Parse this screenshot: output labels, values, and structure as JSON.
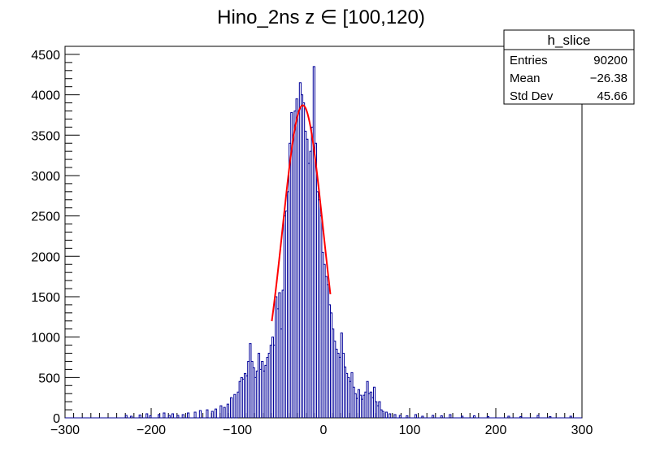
{
  "chart_data": {
    "type": "histogram",
    "title": "Hino_2ns z  ∈ [100,120)",
    "xlabel": "",
    "ylabel": "",
    "xlim": [
      -300,
      300
    ],
    "ylim": [
      0,
      4600
    ],
    "x_ticks": [
      -300,
      -200,
      -100,
      0,
      100,
      200,
      300
    ],
    "x_tick_labels": [
      "−300",
      "−200",
      "−100",
      "0",
      "100",
      "200",
      "300"
    ],
    "y_ticks": [
      0,
      500,
      1000,
      1500,
      2000,
      2500,
      3000,
      3500,
      4000,
      4500
    ],
    "y_tick_labels": [
      "0",
      "500",
      "1000",
      "1500",
      "2000",
      "2500",
      "3000",
      "3500",
      "4000",
      "4500"
    ],
    "bin_width": 2,
    "histogram_color": "#000099",
    "fit_color": "#ff0000",
    "series": [
      {
        "points": [
          [
            -230,
            30
          ],
          [
            -224,
            20
          ],
          [
            -214,
            35
          ],
          [
            -206,
            50
          ],
          [
            -202,
            25
          ],
          [
            -192,
            40
          ],
          [
            -186,
            60
          ],
          [
            -180,
            30
          ],
          [
            -176,
            50
          ],
          [
            -170,
            30
          ],
          [
            -164,
            40
          ],
          [
            -158,
            60
          ],
          [
            -150,
            70
          ],
          [
            -144,
            90
          ],
          [
            -136,
            100
          ],
          [
            -130,
            80
          ],
          [
            -126,
            110
          ],
          [
            -120,
            150
          ],
          [
            -116,
            130
          ],
          [
            -112,
            170
          ],
          [
            -108,
            250
          ],
          [
            -104,
            290
          ],
          [
            -100,
            320
          ],
          [
            -98,
            450
          ],
          [
            -96,
            500
          ],
          [
            -94,
            480
          ],
          [
            -92,
            550
          ],
          [
            -90,
            520
          ],
          [
            -88,
            700
          ],
          [
            -86,
            920
          ],
          [
            -84,
            700
          ],
          [
            -82,
            620
          ],
          [
            -80,
            500
          ],
          [
            -78,
            580
          ],
          [
            -76,
            800
          ],
          [
            -74,
            600
          ],
          [
            -72,
            700
          ],
          [
            -70,
            580
          ],
          [
            -68,
            650
          ],
          [
            -66,
            750
          ],
          [
            -64,
            800
          ],
          [
            -62,
            900
          ],
          [
            -60,
            1000
          ],
          [
            -58,
            900
          ],
          [
            -56,
            1500
          ],
          [
            -54,
            1350
          ],
          [
            -52,
            1550
          ],
          [
            -50,
            1100
          ],
          [
            -48,
            1580
          ],
          [
            -46,
            2500
          ],
          [
            -44,
            2560
          ],
          [
            -42,
            2800
          ],
          [
            -40,
            3400
          ],
          [
            -38,
            3780
          ],
          [
            -36,
            3500
          ],
          [
            -34,
            3800
          ],
          [
            -32,
            3950
          ],
          [
            -30,
            3800
          ],
          [
            -28,
            4150
          ],
          [
            -26,
            4000
          ],
          [
            -24,
            3900
          ],
          [
            -22,
            3550
          ],
          [
            -20,
            3450
          ],
          [
            -18,
            3150
          ],
          [
            -16,
            3300
          ],
          [
            -14,
            3600
          ],
          [
            -12,
            4350
          ],
          [
            -10,
            3400
          ],
          [
            -8,
            2800
          ],
          [
            -6,
            2700
          ],
          [
            -4,
            2500
          ],
          [
            -2,
            2050
          ],
          [
            0,
            1900
          ],
          [
            2,
            1750
          ],
          [
            4,
            1650
          ],
          [
            6,
            1400
          ],
          [
            8,
            1300
          ],
          [
            10,
            1100
          ],
          [
            12,
            950
          ],
          [
            14,
            850
          ],
          [
            16,
            800
          ],
          [
            18,
            750
          ],
          [
            20,
            1050
          ],
          [
            22,
            800
          ],
          [
            24,
            630
          ],
          [
            26,
            550
          ],
          [
            28,
            500
          ],
          [
            30,
            450
          ],
          [
            32,
            560
          ],
          [
            34,
            380
          ],
          [
            36,
            300
          ],
          [
            38,
            240
          ],
          [
            40,
            350
          ],
          [
            42,
            280
          ],
          [
            44,
            230
          ],
          [
            46,
            280
          ],
          [
            48,
            320
          ],
          [
            50,
            450
          ],
          [
            52,
            300
          ],
          [
            54,
            320
          ],
          [
            56,
            250
          ],
          [
            58,
            380
          ],
          [
            60,
            200
          ],
          [
            62,
            150
          ],
          [
            64,
            200
          ],
          [
            66,
            100
          ],
          [
            68,
            80
          ],
          [
            72,
            70
          ],
          [
            76,
            50
          ],
          [
            82,
            40
          ],
          [
            88,
            30
          ],
          [
            96,
            25
          ],
          [
            106,
            40
          ],
          [
            114,
            20
          ],
          [
            126,
            30
          ],
          [
            136,
            25
          ],
          [
            146,
            40
          ],
          [
            160,
            20
          ],
          [
            174,
            25
          ],
          [
            190,
            15
          ],
          [
            214,
            20
          ],
          [
            228,
            15
          ],
          [
            248,
            30
          ],
          [
            262,
            15
          ],
          [
            286,
            20
          ]
        ]
      }
    ],
    "fit": {
      "type": "gaussian",
      "mean": -24,
      "sigma": 23.5,
      "amplitude": 3870,
      "range": [
        -60,
        8
      ]
    },
    "stats_box": {
      "title": "h_slice",
      "rows": [
        {
          "label": "Entries",
          "value": "90200"
        },
        {
          "label": "Mean",
          "value": "−26.38"
        },
        {
          "label": "Std Dev",
          "value": "45.66"
        }
      ]
    }
  }
}
